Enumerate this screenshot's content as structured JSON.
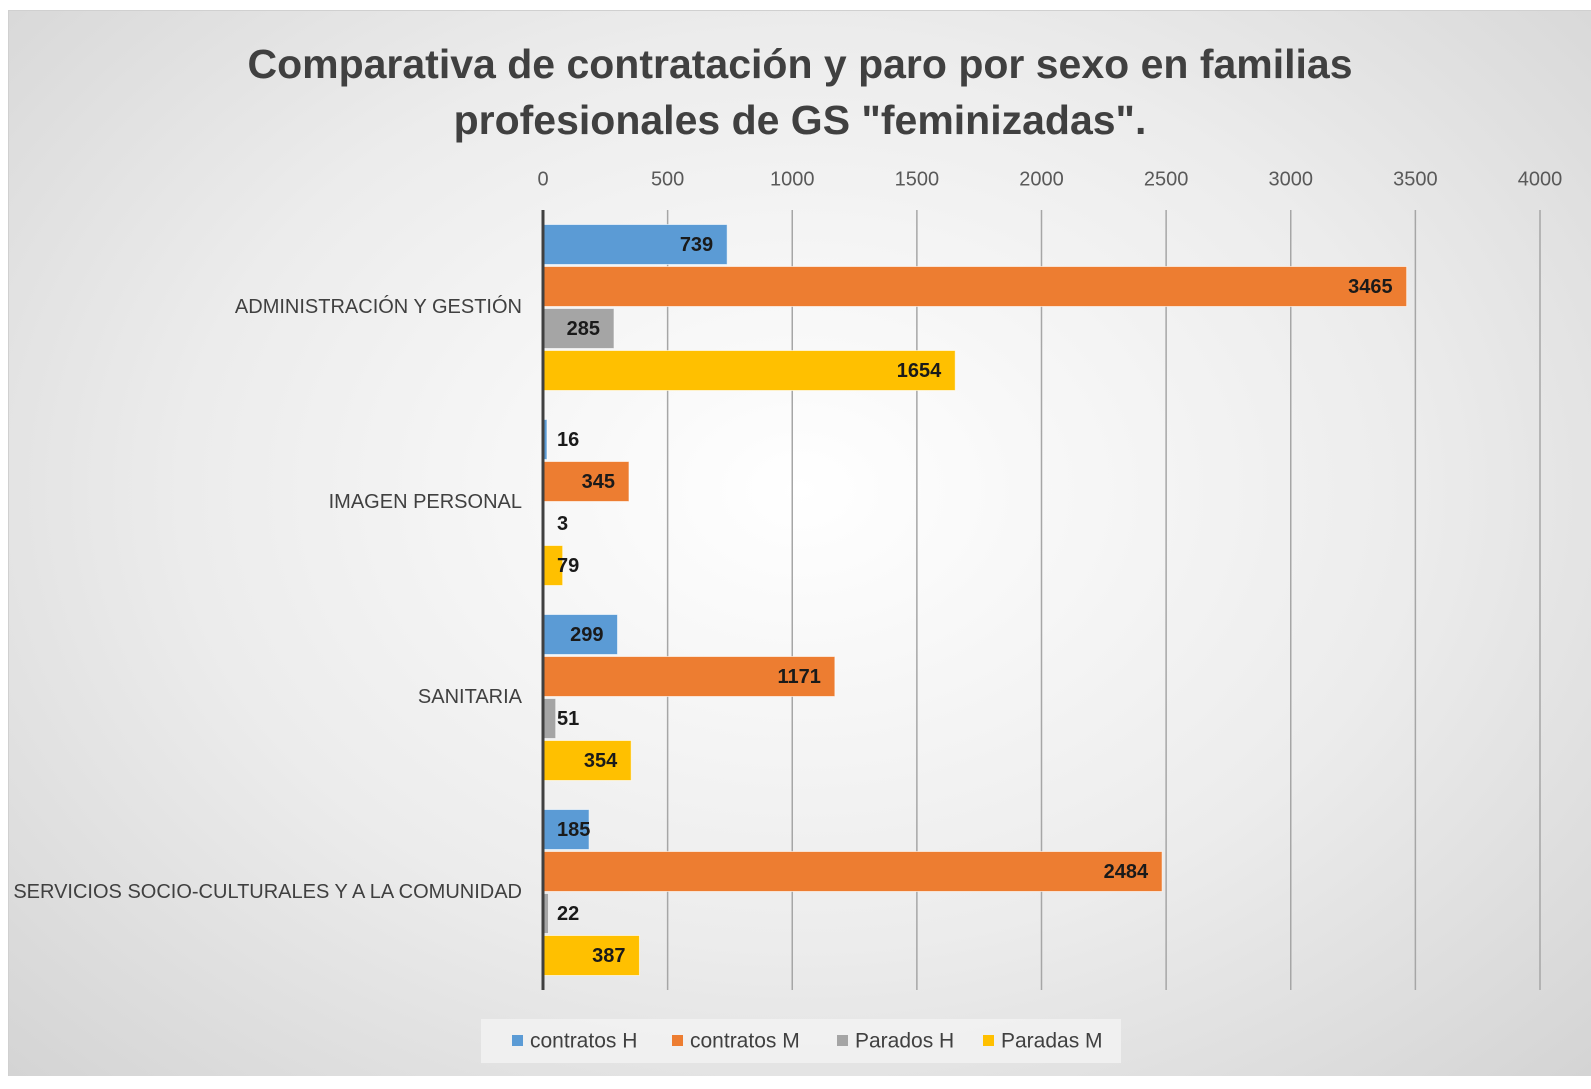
{
  "chart_data": {
    "type": "barh",
    "title": "Comparativa de contratación y paro por sexo en familias profesionales de GS \"feminizadas\".",
    "categories": [
      "ADMINISTRACIÓN Y GESTIÓN",
      "IMAGEN PERSONAL",
      "SANITARIA",
      "SERVICIOS SOCIO-CULTURALES Y A LA COMUNIDAD"
    ],
    "series": [
      {
        "name": "contratos H",
        "color": "#5b9bd5",
        "values": [
          739,
          16,
          299,
          185
        ]
      },
      {
        "name": "contratos M",
        "color": "#ed7d31",
        "values": [
          3465,
          345,
          1171,
          2484
        ]
      },
      {
        "name": "Parados H",
        "color": "#a5a5a5",
        "values": [
          285,
          3,
          51,
          22
        ]
      },
      {
        "name": "Paradas M",
        "color": "#ffc000",
        "values": [
          1654,
          79,
          354,
          387
        ]
      }
    ],
    "xlim": [
      0,
      4000
    ],
    "xticks": [
      0,
      500,
      1000,
      1500,
      2000,
      2500,
      3000,
      3500,
      4000
    ],
    "grid": true,
    "legend": "bottom"
  }
}
